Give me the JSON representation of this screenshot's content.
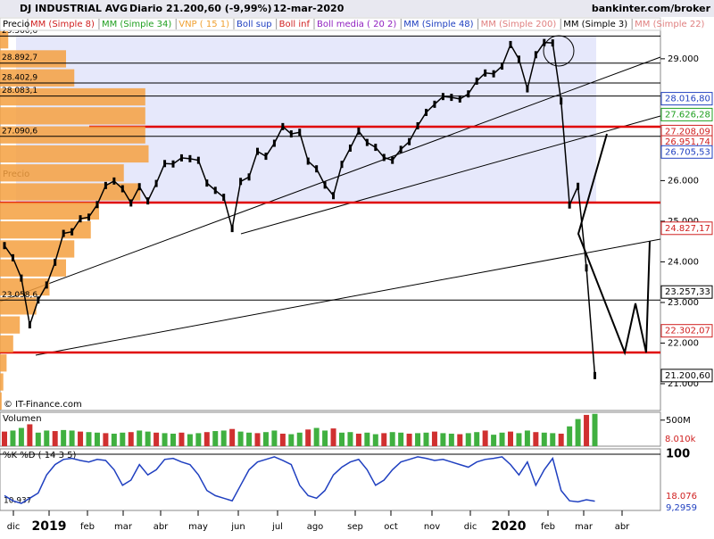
{
  "header": {
    "title": "DJ INDUSTRIAL AVG",
    "period": "Diario",
    "last": "21.200,60 (-9,99%)",
    "date": "12-mar-2020",
    "site": "bankinter.com/broker"
  },
  "chart_data": {
    "type": "line",
    "series": [
      {
        "name": "Precio",
        "color": "#000000",
        "values": [
          24400,
          24100,
          23600,
          22450,
          23060,
          23430,
          23990,
          24700,
          24740,
          25060,
          25100,
          25410,
          25880,
          25990,
          25800,
          25450,
          25850,
          25500,
          25930,
          26420,
          26410,
          26560,
          26540,
          26500,
          25940,
          25760,
          25590,
          24820,
          25980,
          26090,
          26720,
          26600,
          26920,
          27330,
          27150,
          27190,
          26480,
          26290,
          25890,
          25630,
          26400,
          26800,
          27220,
          26940,
          26820,
          26570,
          26500,
          26770,
          26960,
          27350,
          27680,
          27880,
          28070,
          28050,
          28010,
          28135,
          28450,
          28650,
          28630,
          28820,
          29350,
          28990,
          28260,
          29100,
          29400,
          29390,
          27960,
          25400,
          25860,
          23850,
          21200
        ]
      }
    ],
    "legend_items": [
      {
        "name": "MM (Simple 8)",
        "color": "#d02020"
      },
      {
        "name": "MM (Simple 34)",
        "color": "#20a020"
      },
      {
        "name": "VNP ( 15 1)",
        "color": "#f0a030"
      },
      {
        "name": "Boll sup",
        "color": "#2040c0"
      },
      {
        "name": "Boll inf",
        "color": "#d02020"
      },
      {
        "name": "Boll media ( 20 2)",
        "color": "#9020c0"
      },
      {
        "name": "MM (Simple 48)",
        "color": "#2040c0"
      },
      {
        "name": "MM (Simple 200)",
        "color": "#e08080"
      },
      {
        "name": "MM (Simple 3)",
        "color": "#000000"
      },
      {
        "name": "MM (Simple 22)",
        "color": "#e08080"
      }
    ],
    "ylim": [
      20340,
      29700
    ],
    "yticks": [
      {
        "value": 21000,
        "label": "21.000"
      },
      {
        "value": 22000,
        "label": "22.000"
      },
      {
        "value": 23000,
        "label": "23.000"
      },
      {
        "value": 24000,
        "label": "24.000"
      },
      {
        "value": 25000,
        "label": "25.000"
      },
      {
        "value": 26000,
        "label": "26.000"
      },
      {
        "value": 29000,
        "label": "29.000"
      }
    ],
    "price_labels": [
      {
        "value": 28016.8,
        "label": "28.016,80",
        "color": "#2040c0"
      },
      {
        "value": 27626.28,
        "label": "27.626,28",
        "color": "#20a020"
      },
      {
        "value": 27208.09,
        "label": "27.208,09",
        "color": "#d02020"
      },
      {
        "value": 26951.74,
        "label": "26.951,74",
        "color": "#d02020"
      },
      {
        "value": 26705.53,
        "label": "26.705,53",
        "color": "#2040c0"
      },
      {
        "value": 24827.17,
        "label": "24.827,17",
        "color": "#d02020"
      },
      {
        "value": 23257.33,
        "label": "23.257,33",
        "color": "#000000"
      },
      {
        "value": 22302.07,
        "label": "22.302,07",
        "color": "#d02020"
      },
      {
        "value": 21200.6,
        "label": "21.200,60",
        "color": "#000000"
      }
    ],
    "levels": [
      {
        "value": 29560.6,
        "label": "29.560,6"
      },
      {
        "value": 28892.7,
        "label": "28.892,7"
      },
      {
        "value": 28402.9,
        "label": "28.402,9"
      },
      {
        "value": 28083.1,
        "label": "28.083,1"
      },
      {
        "value": 27090.6,
        "label": "27.090,6"
      },
      {
        "value": 23058.6,
        "label": "23.058,6"
      }
    ],
    "volume_profile": {
      "values": [
        5,
        40,
        45,
        88,
        88,
        88,
        90,
        75,
        85,
        60,
        55,
        45,
        40,
        30,
        22,
        12,
        8,
        4,
        2,
        1
      ],
      "xlim": [
        0,
        100
      ]
    },
    "x_labels": [
      "dic",
      "2019",
      "feb",
      "mar",
      "abr",
      "may",
      "jun",
      "jul",
      "ago",
      "sep",
      "oct",
      "nov",
      "dic",
      "2020",
      "feb",
      "mar",
      "abr"
    ],
    "copyright": "© IT-Finance.com"
  },
  "volume": {
    "title": "Volumen",
    "ylim": [
      0,
      650
    ],
    "yticks": [
      {
        "value": 500,
        "label": "500M"
      }
    ],
    "last_label": "8.010k",
    "values": [
      280,
      300,
      350,
      420,
      260,
      300,
      290,
      310,
      300,
      280,
      270,
      260,
      250,
      240,
      260,
      270,
      300,
      280,
      260,
      250,
      240,
      260,
      230,
      250,
      270,
      290,
      300,
      330,
      280,
      260,
      250,
      270,
      300,
      240,
      230,
      260,
      320,
      350,
      300,
      340,
      260,
      270,
      240,
      260,
      230,
      250,
      270,
      260,
      240,
      250,
      260,
      280,
      250,
      240,
      230,
      250,
      270,
      300,
      220,
      260,
      280,
      250,
      300,
      270,
      260,
      250,
      240,
      380,
      520,
      600,
      620
    ]
  },
  "stochastic": {
    "title": "%K %D ( 14 3 5)",
    "ylim": [
      0,
      100
    ],
    "yticks": [
      100
    ],
    "labels": [
      "18.076",
      "9,2959"
    ],
    "left_label": "10.937",
    "values": [
      20,
      10,
      5,
      15,
      25,
      60,
      80,
      90,
      92,
      88,
      85,
      90,
      88,
      70,
      40,
      50,
      80,
      60,
      70,
      90,
      92,
      85,
      80,
      60,
      30,
      20,
      15,
      10,
      40,
      70,
      85,
      90,
      95,
      88,
      80,
      40,
      20,
      15,
      30,
      60,
      75,
      85,
      90,
      70,
      40,
      50,
      70,
      85,
      90,
      95,
      92,
      88,
      90,
      85,
      80,
      75,
      85,
      90,
      92,
      95,
      80,
      60,
      85,
      40,
      70,
      92,
      30,
      10,
      8,
      12,
      9.3
    ]
  }
}
